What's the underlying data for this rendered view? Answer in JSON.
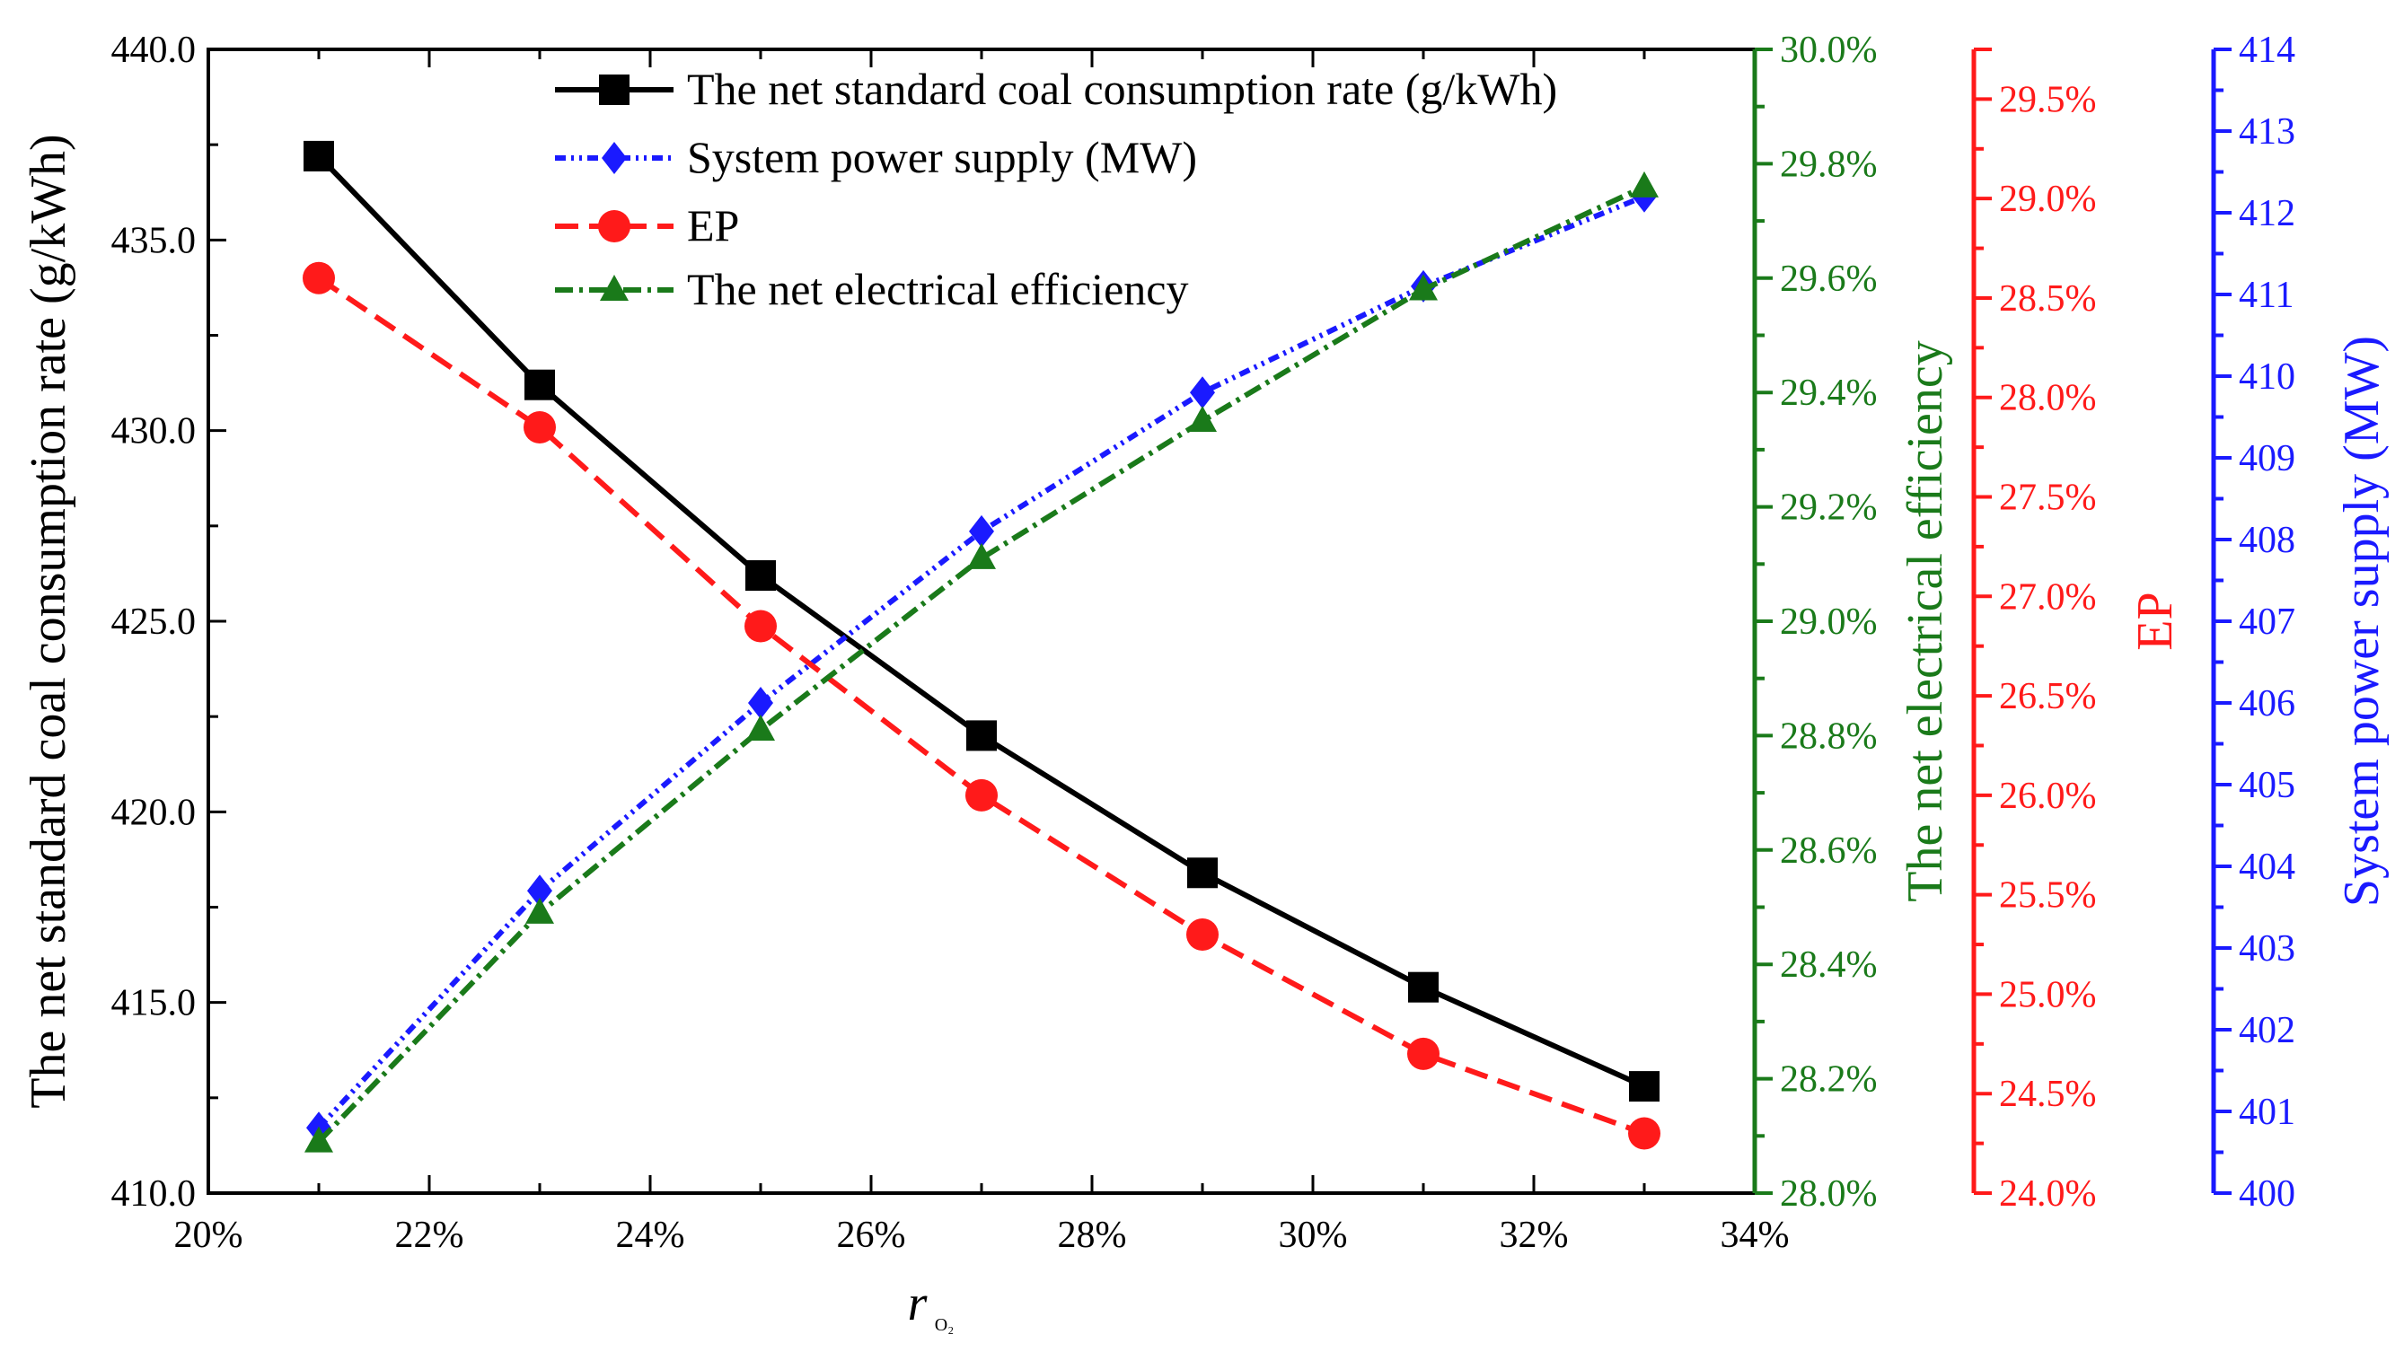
{
  "chart_data": {
    "type": "line",
    "x": [
      21,
      23,
      25,
      27,
      29,
      31,
      33
    ],
    "xlabel_main": "r",
    "xlabel_sub": "O₂",
    "xlim": [
      20,
      34
    ],
    "xticks": [
      "20%",
      "22%",
      "24%",
      "26%",
      "28%",
      "30%",
      "32%",
      "34%"
    ],
    "axes": {
      "coal": {
        "label": "The net standard coal consumption rate (g/kWh)",
        "range": [
          410.0,
          440.0
        ],
        "ticks": [
          "410.0",
          "415.0",
          "420.0",
          "425.0",
          "430.0",
          "435.0",
          "440.0"
        ],
        "color": "#000000"
      },
      "eff": {
        "label": "The net electrical efficiency",
        "range": [
          28.0,
          30.0
        ],
        "ticks": [
          "28.0%",
          "28.2%",
          "28.4%",
          "28.6%",
          "28.8%",
          "29.0%",
          "29.2%",
          "29.4%",
          "29.6%",
          "29.8%",
          "30.0%"
        ],
        "color": "#1a7a1a"
      },
      "ep": {
        "label": "EP",
        "range": [
          24.0,
          29.75
        ],
        "ticks": [
          "24.0%",
          "24.5%",
          "25.0%",
          "25.5%",
          "26.0%",
          "26.5%",
          "27.0%",
          "27.5%",
          "28.0%",
          "28.5%",
          "29.0%",
          "29.5%"
        ],
        "color": "#ff1a1a"
      },
      "power": {
        "label": "System power supply (MW)",
        "range": [
          400,
          414
        ],
        "ticks": [
          "400",
          "401",
          "402",
          "403",
          "404",
          "405",
          "406",
          "407",
          "408",
          "409",
          "410",
          "411",
          "412",
          "413",
          "414"
        ],
        "color": "#1a1aff"
      }
    },
    "series": [
      {
        "name": "The net standard coal consumption rate (g/kWh)",
        "axis": "coal",
        "marker": "square",
        "dash": "",
        "color": "#000000",
        "values": [
          437.2,
          431.2,
          426.2,
          422.0,
          418.4,
          415.4,
          412.8
        ]
      },
      {
        "name": "System power supply (MW)",
        "axis": "power",
        "marker": "diamond",
        "dash": "12 6 3 6 3 6",
        "color": "#1a1aff",
        "values": [
          400.8,
          403.7,
          406.0,
          408.1,
          409.8,
          411.1,
          412.2
        ]
      },
      {
        "name": "EP",
        "axis": "ep",
        "marker": "circle",
        "dash": "26 12",
        "color": "#ff1a1a",
        "values": [
          28.6,
          27.85,
          26.85,
          26.0,
          25.3,
          24.7,
          24.3
        ]
      },
      {
        "name": "The net electrical efficiency",
        "axis": "eff",
        "marker": "triangle",
        "dash": "20 7 4 7",
        "color": "#1a7a1a",
        "values": [
          28.09,
          28.49,
          28.81,
          29.11,
          29.35,
          29.58,
          29.76
        ]
      }
    ]
  }
}
